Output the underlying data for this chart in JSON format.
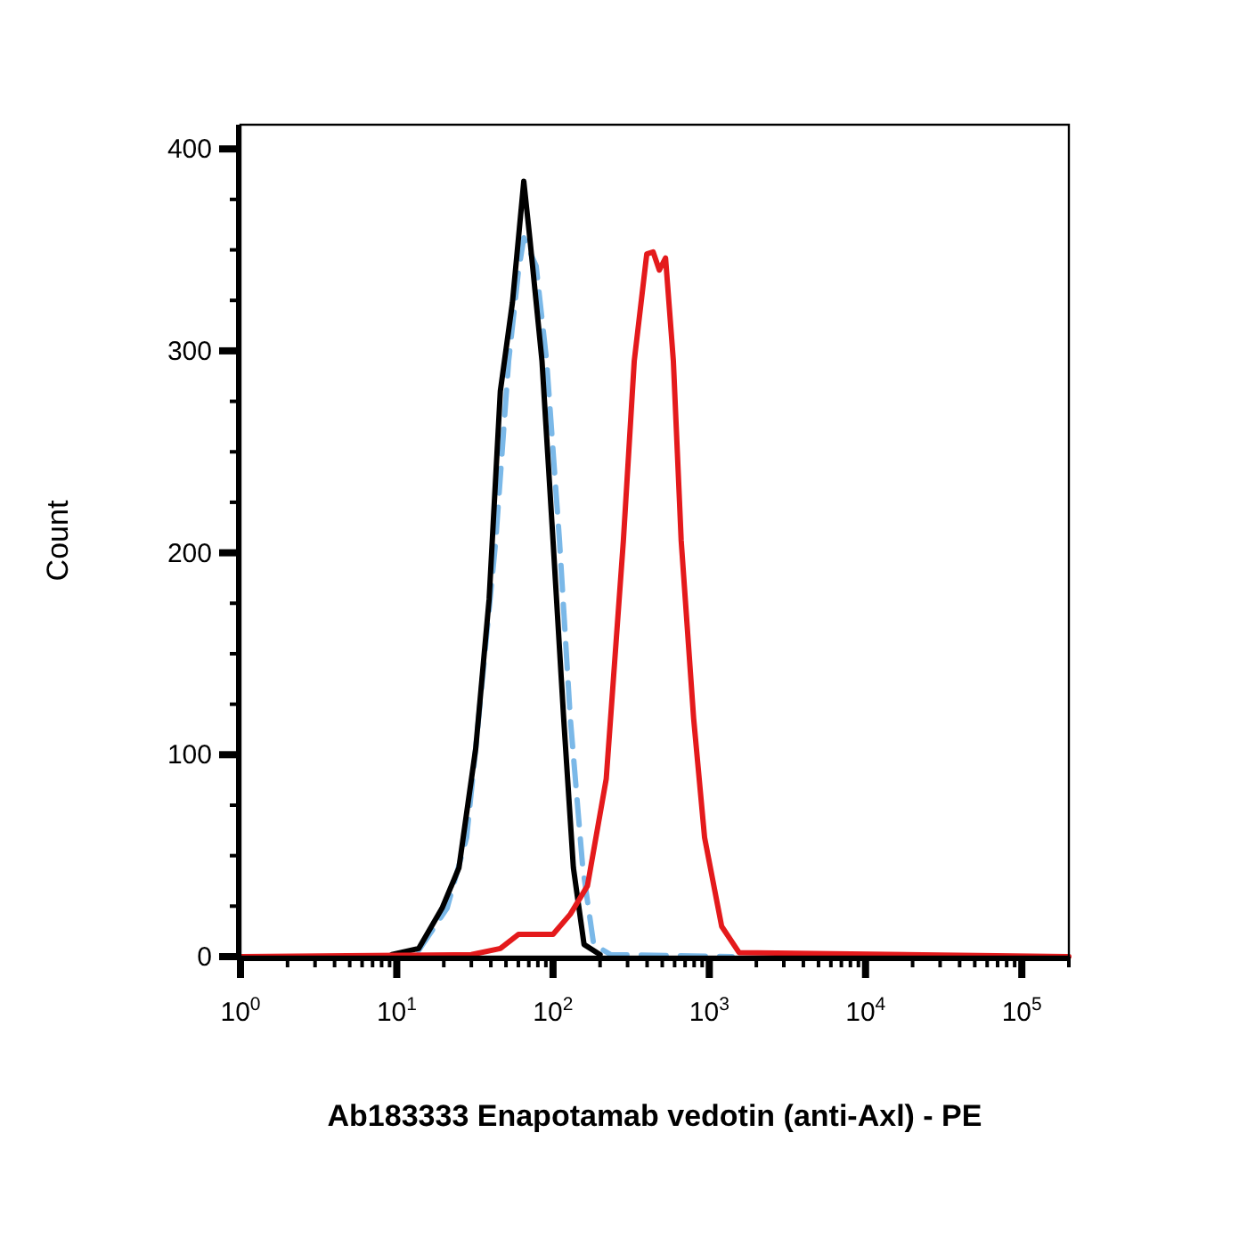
{
  "chart_data": {
    "type": "line",
    "xlabel": "Ab183333 Enapotamab vedotin (anti-Axl) - PE",
    "ylabel": "Count",
    "log": "x",
    "grid": false,
    "marker": "none",
    "xlim": [
      1,
      200000
    ],
    "ylim": [
      0,
      412
    ],
    "xticks": [
      {
        "value": 1,
        "label": "10$^{0}$"
      },
      {
        "value": 2,
        "label": null
      },
      {
        "value": 3,
        "label": null
      },
      {
        "value": 4,
        "label": null
      },
      {
        "value": 5,
        "label": null
      },
      {
        "value": 6,
        "label": null
      },
      {
        "value": 7,
        "label": null
      },
      {
        "value": 8,
        "label": null
      },
      {
        "value": 9,
        "label": null
      },
      {
        "value": 10,
        "label": "10$^{1}$"
      },
      {
        "value": 20,
        "label": null
      },
      {
        "value": 30,
        "label": null
      },
      {
        "value": 40,
        "label": null
      },
      {
        "value": 50,
        "label": null
      },
      {
        "value": 60,
        "label": null
      },
      {
        "value": 70,
        "label": null
      },
      {
        "value": 80,
        "label": null
      },
      {
        "value": 90,
        "label": null
      },
      {
        "value": 100,
        "label": "10$^{2}$"
      },
      {
        "value": 200,
        "label": null
      },
      {
        "value": 300,
        "label": null
      },
      {
        "value": 400,
        "label": null
      },
      {
        "value": 500,
        "label": null
      },
      {
        "value": 600,
        "label": null
      },
      {
        "value": 700,
        "label": null
      },
      {
        "value": 800,
        "label": null
      },
      {
        "value": 900,
        "label": null
      },
      {
        "value": 1000,
        "label": "10$^{3}$"
      },
      {
        "value": 2000,
        "label": null
      },
      {
        "value": 3000,
        "label": null
      },
      {
        "value": 4000,
        "label": null
      },
      {
        "value": 5000,
        "label": null
      },
      {
        "value": 6000,
        "label": null
      },
      {
        "value": 7000,
        "label": null
      },
      {
        "value": 8000,
        "label": null
      },
      {
        "value": 9000,
        "label": null
      },
      {
        "value": 10000,
        "label": "10$^{4}$"
      },
      {
        "value": 20000,
        "label": null
      },
      {
        "value": 30000,
        "label": null
      },
      {
        "value": 40000,
        "label": null
      },
      {
        "value": 50000,
        "label": null
      },
      {
        "value": 60000,
        "label": null
      },
      {
        "value": 70000,
        "label": null
      },
      {
        "value": 80000,
        "label": null
      },
      {
        "value": 90000,
        "label": null
      },
      {
        "value": 100000,
        "label": "10$^{5}$"
      },
      {
        "value": 200000,
        "label": null
      }
    ],
    "yticks": [
      0,
      {
        "value": 25,
        "label": null
      },
      {
        "value": 50,
        "label": null
      },
      {
        "value": 75,
        "label": null
      },
      100,
      {
        "value": 125,
        "label": null
      },
      {
        "value": 150,
        "label": null
      },
      {
        "value": 175,
        "label": null
      },
      200,
      {
        "value": 225,
        "label": null
      },
      {
        "value": 250,
        "label": null
      },
      {
        "value": 275,
        "label": null
      },
      300,
      {
        "value": 325,
        "label": null
      },
      {
        "value": 350,
        "label": null
      },
      {
        "value": 375,
        "label": null
      },
      400
    ],
    "series": [
      {
        "color": "#7ab8e8",
        "line_style": "dashed",
        "x": [
          13.8,
          21,
          28,
          32,
          43,
          52,
          60,
          65,
          78,
          91,
          110,
          129,
          155,
          182,
          234,
          1400
        ],
        "values": [
          3,
          24,
          59,
          103,
          206,
          295,
          339,
          356,
          342,
          295,
          206,
          118,
          44,
          6,
          1,
          0
        ]
      },
      {
        "color": "#000000",
        "line_style": "solid",
        "x": [
          9.3,
          13.8,
          19.5,
          25,
          32,
          39,
          46,
          55,
          65,
          71,
          85,
          100,
          117,
          135,
          158,
          200
        ],
        "values": [
          1,
          4,
          24,
          44,
          103,
          177,
          280,
          324,
          384,
          356,
          295,
          206,
          118,
          44,
          6,
          1
        ]
      },
      {
        "color": "#e41a1c",
        "line_style": "solid",
        "x": [
          1,
          30,
          46,
          60,
          100,
          129,
          166,
          219,
          282,
          331,
          398,
          437,
          479,
          525,
          589,
          661,
          794,
          933,
          1200,
          1550,
          200000
        ],
        "values": [
          0,
          1,
          4,
          11,
          11,
          21,
          35,
          88,
          206,
          295,
          348,
          349,
          340,
          346,
          295,
          206,
          118,
          59,
          15,
          2,
          0
        ]
      }
    ]
  }
}
